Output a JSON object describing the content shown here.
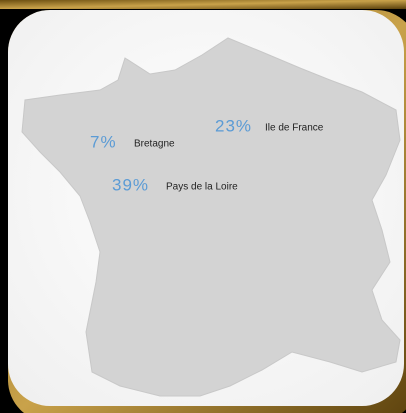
{
  "regions": [
    {
      "percent": "7%",
      "name": "Bretagne"
    },
    {
      "percent": "23%",
      "name": "Ile de France"
    },
    {
      "percent": "39%",
      "name": "Pays de la Loire"
    }
  ]
}
